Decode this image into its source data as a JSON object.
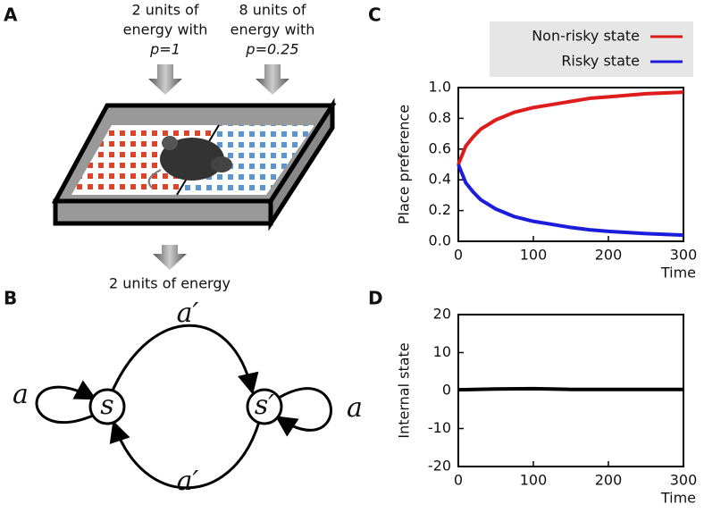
{
  "panel_labels": [
    "A",
    "B",
    "C",
    "D"
  ],
  "diagram_a": {
    "inputs": [
      {
        "text": [
          "2 units of",
          "energy with"
        ],
        "prob": "p=1"
      },
      {
        "text": [
          "8 units of",
          "energy with"
        ],
        "prob": "p=0.25"
      }
    ],
    "output": "2 units of energy"
  },
  "diagram_b": {
    "nodes": [
      "s",
      "s′"
    ],
    "edges": [
      "a",
      "a′",
      "a′",
      "a"
    ]
  },
  "chart_data": [
    {
      "type": "line",
      "ylabel": "Place preference",
      "xlabel": "Time",
      "x": [
        0,
        10,
        20,
        30,
        50,
        75,
        100,
        125,
        150,
        175,
        200,
        250,
        300
      ],
      "series": [
        {
          "name": "Non-risky state",
          "color": "#dd1c1c",
          "values": [
            0.5,
            0.62,
            0.68,
            0.73,
            0.79,
            0.84,
            0.87,
            0.89,
            0.91,
            0.93,
            0.94,
            0.96,
            0.97
          ]
        },
        {
          "name": "Risky state",
          "color": "#1c1cdd",
          "values": [
            0.5,
            0.38,
            0.32,
            0.27,
            0.21,
            0.16,
            0.13,
            0.11,
            0.09,
            0.075,
            0.065,
            0.05,
            0.04
          ]
        }
      ],
      "xlim": [
        0,
        300
      ],
      "ylim": [
        0,
        1
      ],
      "xticks": [
        0,
        100,
        200,
        300
      ],
      "yticks": [
        {
          "value": 0,
          "label": "0.0"
        },
        {
          "value": 0.2,
          "label": "0.2"
        },
        {
          "value": 0.4,
          "label": "0.4"
        },
        {
          "value": 0.6,
          "label": "0.6"
        },
        {
          "value": 0.8,
          "label": "0.8"
        },
        {
          "value": 1,
          "label": "1.0"
        }
      ],
      "legend": "upper right"
    },
    {
      "type": "line",
      "ylabel": "Internal state",
      "xlabel": "Time",
      "x": [
        0,
        50,
        100,
        150,
        200,
        250,
        300
      ],
      "series": [
        {
          "color": "#000000",
          "values": [
            0.2,
            0.4,
            0.5,
            0.3,
            0.3,
            0.3,
            0.3
          ]
        }
      ],
      "xlim": [
        0,
        300
      ],
      "ylim": [
        -20,
        20
      ],
      "xticks": [
        0,
        100,
        200,
        300
      ],
      "yticks": [
        -20,
        -10,
        0,
        10,
        20
      ]
    }
  ]
}
